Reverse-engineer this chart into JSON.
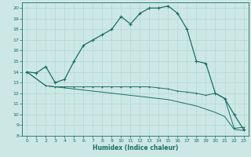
{
  "xlabel": "Humidex (Indice chaleur)",
  "background_color": "#cde8e4",
  "grid_color": "#b0d8d4",
  "line_color": "#1a6e62",
  "xlim": [
    -0.5,
    23.5
  ],
  "ylim": [
    8,
    20.5
  ],
  "xticks": [
    0,
    1,
    2,
    3,
    4,
    5,
    6,
    7,
    8,
    9,
    10,
    11,
    12,
    13,
    14,
    15,
    16,
    17,
    18,
    19,
    20,
    21,
    22,
    23
  ],
  "yticks": [
    8,
    9,
    10,
    11,
    12,
    13,
    14,
    15,
    16,
    17,
    18,
    19,
    20
  ],
  "line1_x": [
    0,
    1,
    2,
    3,
    4,
    5,
    6,
    7,
    8,
    9,
    10,
    11,
    12,
    13,
    14,
    15,
    16,
    17,
    18,
    19,
    20,
    21,
    22,
    23
  ],
  "line1_y": [
    14.0,
    13.9,
    14.5,
    13.0,
    13.3,
    15.0,
    16.5,
    17.0,
    17.5,
    18.0,
    19.2,
    18.5,
    19.5,
    20.0,
    20.0,
    20.2,
    19.5,
    18.0,
    15.0,
    14.8,
    12.0,
    11.5,
    10.0,
    8.6
  ],
  "line2_x": [
    0,
    2,
    3,
    4,
    5,
    6,
    7,
    8,
    9,
    10,
    11,
    12,
    13,
    14,
    15,
    16,
    17,
    18,
    19,
    20,
    21,
    22,
    23
  ],
  "line2_y": [
    14.0,
    12.7,
    12.6,
    12.6,
    12.6,
    12.6,
    12.6,
    12.6,
    12.6,
    12.6,
    12.6,
    12.6,
    12.6,
    12.5,
    12.4,
    12.2,
    12.1,
    12.0,
    11.8,
    12.0,
    11.5,
    8.7,
    8.8
  ],
  "line3_x": [
    0,
    2,
    3,
    4,
    5,
    6,
    7,
    8,
    9,
    10,
    11,
    12,
    13,
    14,
    15,
    16,
    17,
    18,
    19,
    20,
    21,
    22,
    23
  ],
  "line3_y": [
    14.0,
    12.7,
    12.6,
    12.5,
    12.4,
    12.3,
    12.2,
    12.1,
    12.0,
    11.9,
    11.8,
    11.7,
    11.6,
    11.5,
    11.4,
    11.2,
    11.0,
    10.8,
    10.5,
    10.2,
    9.8,
    8.6,
    8.5
  ]
}
